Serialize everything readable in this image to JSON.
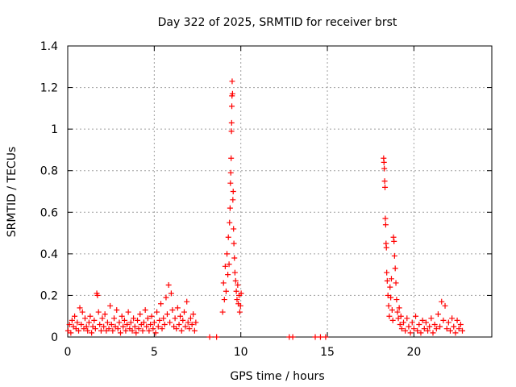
{
  "chart_data": {
    "type": "scatter",
    "title": "Day 322 of 2025, SRMTID for receiver brst",
    "xlabel": "GPS time / hours",
    "ylabel": "SRMTID / TECUs",
    "xlim": [
      0,
      24.5
    ],
    "ylim": [
      0,
      1.4
    ],
    "xticks": [
      0,
      5,
      10,
      15,
      20
    ],
    "xtick_labels": [
      "0",
      "5",
      "10",
      "15",
      "20"
    ],
    "yticks": [
      0,
      0.2,
      0.4,
      0.6,
      0.8,
      1.0,
      1.2,
      1.4
    ],
    "ytick_labels": [
      "0",
      "0.2",
      "0.4",
      "0.6",
      "0.8",
      "1",
      "1.2",
      "1.4"
    ],
    "grid": true,
    "marker": "+",
    "marker_color": "#ff0000",
    "series": [
      {
        "name": "SRMTID",
        "points": [
          [
            0.02,
            0.03
          ],
          [
            0.1,
            0.06
          ],
          [
            0.18,
            0.02
          ],
          [
            0.25,
            0.08
          ],
          [
            0.33,
            0.05
          ],
          [
            0.4,
            0.1
          ],
          [
            0.48,
            0.04
          ],
          [
            0.55,
            0.07
          ],
          [
            0.63,
            0.03
          ],
          [
            0.7,
            0.14
          ],
          [
            0.78,
            0.06
          ],
          [
            0.85,
            0.12
          ],
          [
            0.93,
            0.04
          ],
          [
            1.0,
            0.09
          ],
          [
            1.08,
            0.05
          ],
          [
            1.15,
            0.03
          ],
          [
            1.23,
            0.07
          ],
          [
            1.3,
            0.1
          ],
          [
            1.38,
            0.02
          ],
          [
            1.45,
            0.05
          ],
          [
            1.53,
            0.08
          ],
          [
            1.6,
            0.04
          ],
          [
            1.68,
            0.21
          ],
          [
            1.72,
            0.2
          ],
          [
            1.78,
            0.12
          ],
          [
            1.85,
            0.06
          ],
          [
            1.93,
            0.03
          ],
          [
            2.0,
            0.09
          ],
          [
            2.08,
            0.05
          ],
          [
            2.15,
            0.11
          ],
          [
            2.23,
            0.03
          ],
          [
            2.3,
            0.07
          ],
          [
            2.38,
            0.04
          ],
          [
            2.45,
            0.15
          ],
          [
            2.53,
            0.06
          ],
          [
            2.6,
            0.03
          ],
          [
            2.68,
            0.09
          ],
          [
            2.75,
            0.05
          ],
          [
            2.83,
            0.13
          ],
          [
            2.9,
            0.04
          ],
          [
            2.98,
            0.07
          ],
          [
            3.05,
            0.02
          ],
          [
            3.13,
            0.1
          ],
          [
            3.2,
            0.05
          ],
          [
            3.28,
            0.08
          ],
          [
            3.35,
            0.03
          ],
          [
            3.43,
            0.06
          ],
          [
            3.5,
            0.12
          ],
          [
            3.58,
            0.04
          ],
          [
            3.65,
            0.07
          ],
          [
            3.73,
            0.03
          ],
          [
            3.8,
            0.09
          ],
          [
            3.88,
            0.05
          ],
          [
            3.95,
            0.02
          ],
          [
            4.03,
            0.08
          ],
          [
            4.1,
            0.04
          ],
          [
            4.18,
            0.11
          ],
          [
            4.25,
            0.06
          ],
          [
            4.33,
            0.03
          ],
          [
            4.4,
            0.07
          ],
          [
            4.48,
            0.13
          ],
          [
            4.55,
            0.05
          ],
          [
            4.63,
            0.09
          ],
          [
            4.7,
            0.03
          ],
          [
            4.78,
            0.06
          ],
          [
            4.85,
            0.1
          ],
          [
            4.93,
            0.04
          ],
          [
            5.0,
            0.07
          ],
          [
            5.08,
            0.02
          ],
          [
            5.15,
            0.12
          ],
          [
            5.23,
            0.05
          ],
          [
            5.3,
            0.08
          ],
          [
            5.38,
            0.16
          ],
          [
            5.45,
            0.04
          ],
          [
            5.53,
            0.09
          ],
          [
            5.6,
            0.06
          ],
          [
            5.68,
            0.19
          ],
          [
            5.75,
            0.11
          ],
          [
            5.83,
            0.25
          ],
          [
            5.9,
            0.07
          ],
          [
            5.98,
            0.21
          ],
          [
            6.05,
            0.13
          ],
          [
            6.13,
            0.05
          ],
          [
            6.2,
            0.09
          ],
          [
            6.28,
            0.04
          ],
          [
            6.35,
            0.14
          ],
          [
            6.43,
            0.06
          ],
          [
            6.5,
            0.1
          ],
          [
            6.58,
            0.03
          ],
          [
            6.65,
            0.08
          ],
          [
            6.73,
            0.12
          ],
          [
            6.8,
            0.05
          ],
          [
            6.88,
            0.17
          ],
          [
            6.95,
            0.07
          ],
          [
            7.03,
            0.04
          ],
          [
            7.1,
            0.09
          ],
          [
            7.18,
            0.06
          ],
          [
            7.25,
            0.11
          ],
          [
            7.33,
            0.03
          ],
          [
            7.4,
            0.07
          ],
          [
            8.2,
            0.0
          ],
          [
            8.6,
            0.0
          ],
          [
            8.95,
            0.12
          ],
          [
            9.0,
            0.26
          ],
          [
            9.05,
            0.18
          ],
          [
            9.1,
            0.34
          ],
          [
            9.15,
            0.22
          ],
          [
            9.2,
            0.4
          ],
          [
            9.25,
            0.3
          ],
          [
            9.28,
            0.48
          ],
          [
            9.32,
            0.35
          ],
          [
            9.35,
            0.55
          ],
          [
            9.38,
            0.62
          ],
          [
            9.4,
            0.74
          ],
          [
            9.42,
            0.79
          ],
          [
            9.44,
            0.86
          ],
          [
            9.46,
            0.99
          ],
          [
            9.47,
            1.03
          ],
          [
            9.48,
            1.11
          ],
          [
            9.49,
            1.16
          ],
          [
            9.5,
            1.23
          ],
          [
            9.52,
            1.17
          ],
          [
            9.54,
            0.66
          ],
          [
            9.56,
            0.7
          ],
          [
            9.58,
            0.52
          ],
          [
            9.6,
            0.45
          ],
          [
            9.63,
            0.38
          ],
          [
            9.66,
            0.31
          ],
          [
            9.7,
            0.27
          ],
          [
            9.74,
            0.22
          ],
          [
            9.78,
            0.18
          ],
          [
            9.82,
            0.25
          ],
          [
            9.86,
            0.16
          ],
          [
            9.9,
            0.2
          ],
          [
            9.94,
            0.12
          ],
          [
            9.98,
            0.15
          ],
          [
            10.02,
            0.21
          ],
          [
            12.8,
            0.0
          ],
          [
            13.0,
            0.0
          ],
          [
            14.3,
            0.0
          ],
          [
            14.6,
            0.0
          ],
          [
            14.9,
            0.0
          ],
          [
            18.25,
            0.86
          ],
          [
            18.27,
            0.84
          ],
          [
            18.29,
            0.81
          ],
          [
            18.31,
            0.75
          ],
          [
            18.33,
            0.72
          ],
          [
            18.35,
            0.57
          ],
          [
            18.37,
            0.54
          ],
          [
            18.39,
            0.45
          ],
          [
            18.41,
            0.43
          ],
          [
            18.43,
            0.31
          ],
          [
            18.46,
            0.27
          ],
          [
            18.5,
            0.2
          ],
          [
            18.54,
            0.15
          ],
          [
            18.58,
            0.1
          ],
          [
            18.62,
            0.24
          ],
          [
            18.66,
            0.19
          ],
          [
            18.7,
            0.28
          ],
          [
            18.74,
            0.13
          ],
          [
            18.78,
            0.08
          ],
          [
            18.82,
            0.48
          ],
          [
            18.85,
            0.46
          ],
          [
            18.88,
            0.39
          ],
          [
            18.92,
            0.33
          ],
          [
            18.96,
            0.26
          ],
          [
            19.0,
            0.18
          ],
          [
            19.05,
            0.12
          ],
          [
            19.1,
            0.09
          ],
          [
            19.15,
            0.14
          ],
          [
            19.2,
            0.06
          ],
          [
            19.25,
            0.1
          ],
          [
            19.3,
            0.04
          ],
          [
            19.4,
            0.07
          ],
          [
            19.5,
            0.03
          ],
          [
            19.6,
            0.09
          ],
          [
            19.7,
            0.05
          ],
          [
            19.8,
            0.02
          ],
          [
            19.9,
            0.07
          ],
          [
            20.0,
            0.04
          ],
          [
            20.1,
            0.1
          ],
          [
            20.2,
            0.03
          ],
          [
            20.3,
            0.06
          ],
          [
            20.4,
            0.02
          ],
          [
            20.5,
            0.08
          ],
          [
            20.6,
            0.04
          ],
          [
            20.7,
            0.07
          ],
          [
            20.8,
            0.03
          ],
          [
            20.9,
            0.05
          ],
          [
            21.0,
            0.09
          ],
          [
            21.1,
            0.02
          ],
          [
            21.2,
            0.06
          ],
          [
            21.3,
            0.04
          ],
          [
            21.4,
            0.11
          ],
          [
            21.5,
            0.05
          ],
          [
            21.6,
            0.17
          ],
          [
            21.7,
            0.08
          ],
          [
            21.8,
            0.15
          ],
          [
            21.9,
            0.04
          ],
          [
            22.0,
            0.07
          ],
          [
            22.1,
            0.03
          ],
          [
            22.2,
            0.09
          ],
          [
            22.3,
            0.05
          ],
          [
            22.4,
            0.02
          ],
          [
            22.5,
            0.08
          ],
          [
            22.6,
            0.04
          ],
          [
            22.7,
            0.06
          ],
          [
            22.8,
            0.03
          ]
        ]
      }
    ]
  }
}
